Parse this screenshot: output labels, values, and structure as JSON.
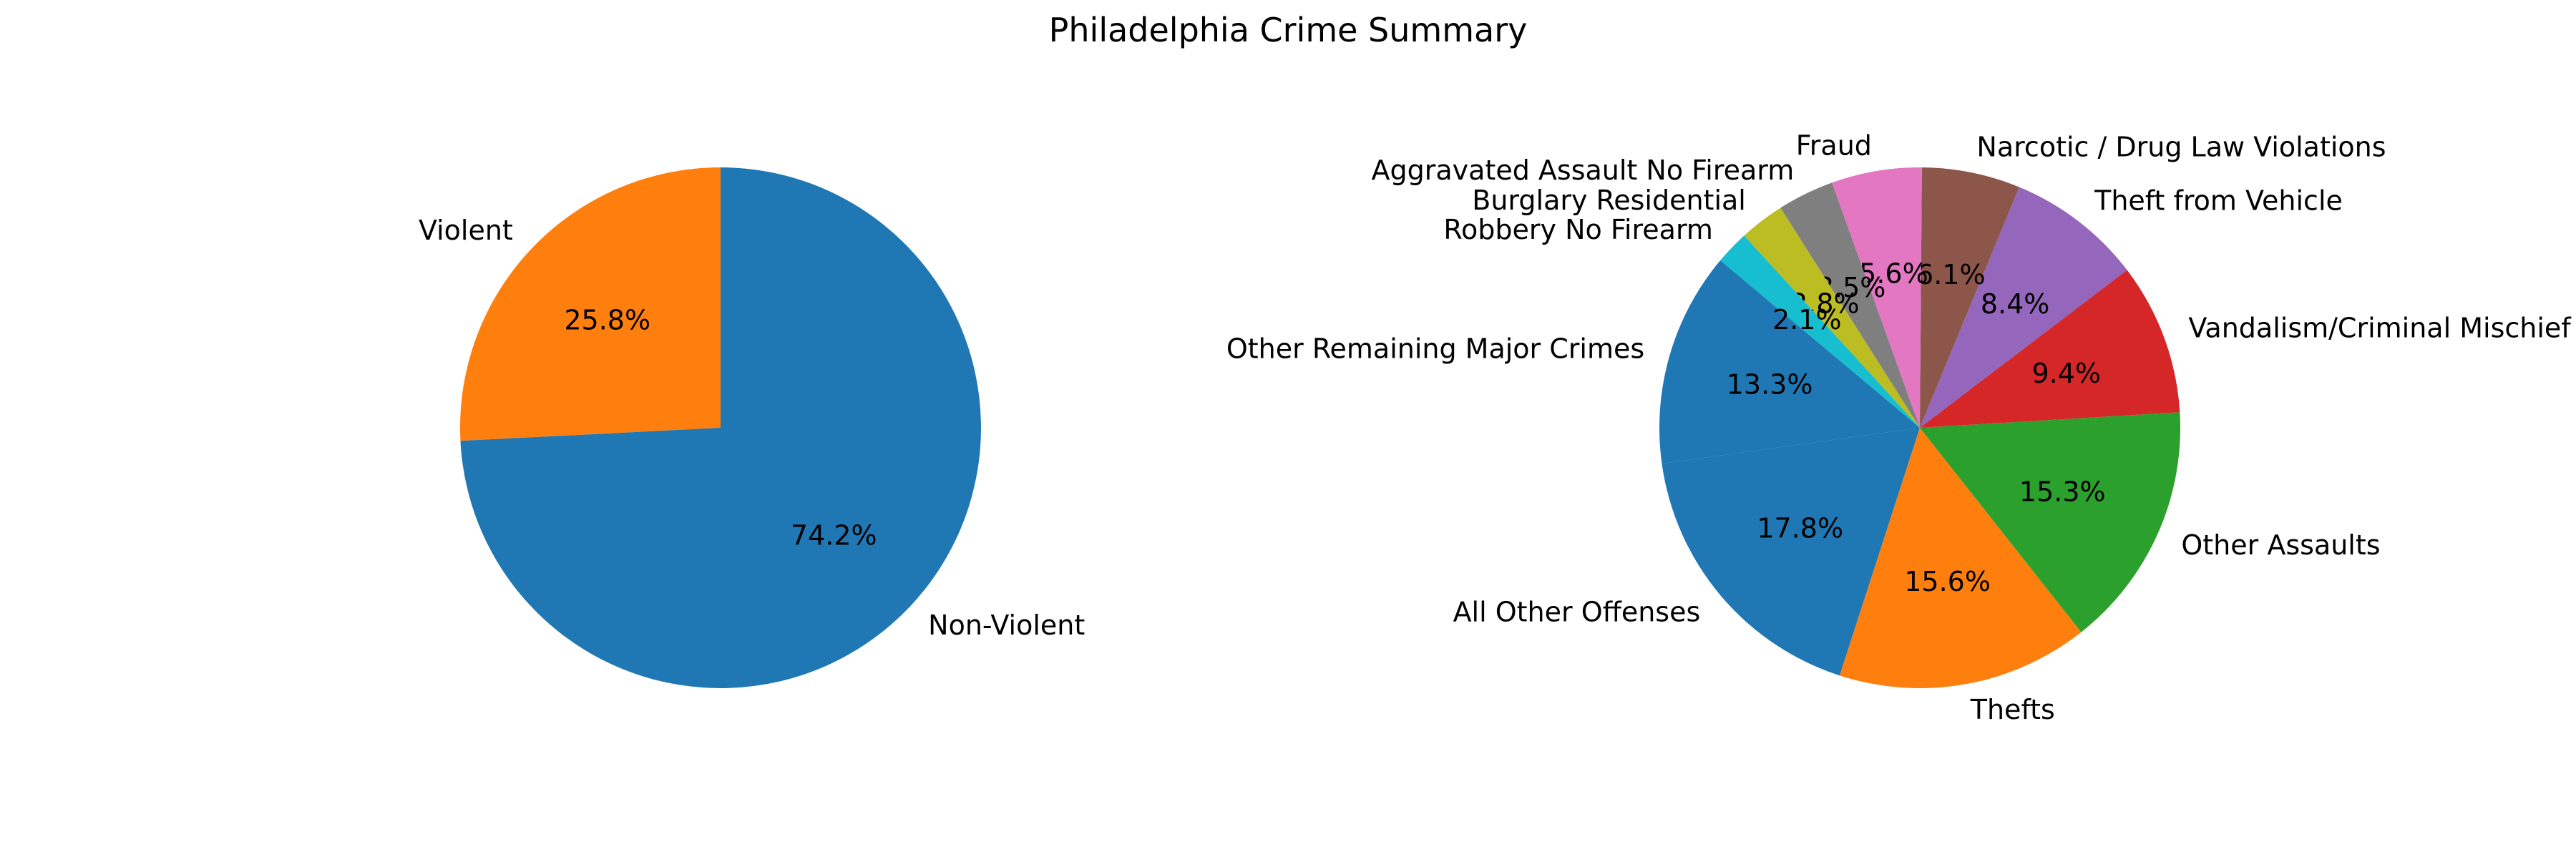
{
  "chart_data": [
    {
      "type": "pie",
      "title": "Philadelphia Crime Summary",
      "categories": [
        "Violent",
        "Non-Violent"
      ],
      "values": [
        25.8,
        74.2
      ],
      "autopct": [
        "25.8%",
        "74.2%"
      ],
      "colors": [
        "#ff7f0e",
        "#1f77b4"
      ],
      "start_angle": 90,
      "direction": "counterclockwise"
    },
    {
      "type": "pie",
      "categories": [
        "Other Remaining Major Crimes",
        "All Other Offenses",
        "Thefts",
        "Other Assaults",
        "Vandalism/Criminal Mischief",
        "Theft from Vehicle",
        "Narcotic / Drug Law Violations",
        "Fraud",
        "Aggravated Assault No Firearm",
        "Burglary Residential",
        "Robbery No Firearm"
      ],
      "values": [
        13.3,
        17.8,
        15.6,
        15.3,
        9.4,
        8.4,
        6.1,
        5.6,
        3.5,
        2.8,
        2.1
      ],
      "autopct": [
        "13.3%",
        "17.8%",
        "15.6%",
        "15.3%",
        "9.4%",
        "8.4%",
        "6.1%",
        "5.6%",
        "3.5%",
        "2.8%",
        "2.1%"
      ],
      "colors": [
        "#1f77b4",
        "#1f77b4",
        "#ff7f0e",
        "#2ca02c",
        "#d62728",
        "#9467bd",
        "#8c564b",
        "#e377c2",
        "#7f7f7f",
        "#bcbd22",
        "#17becf"
      ],
      "start_angle": 140,
      "direction": "counterclockwise"
    }
  ]
}
